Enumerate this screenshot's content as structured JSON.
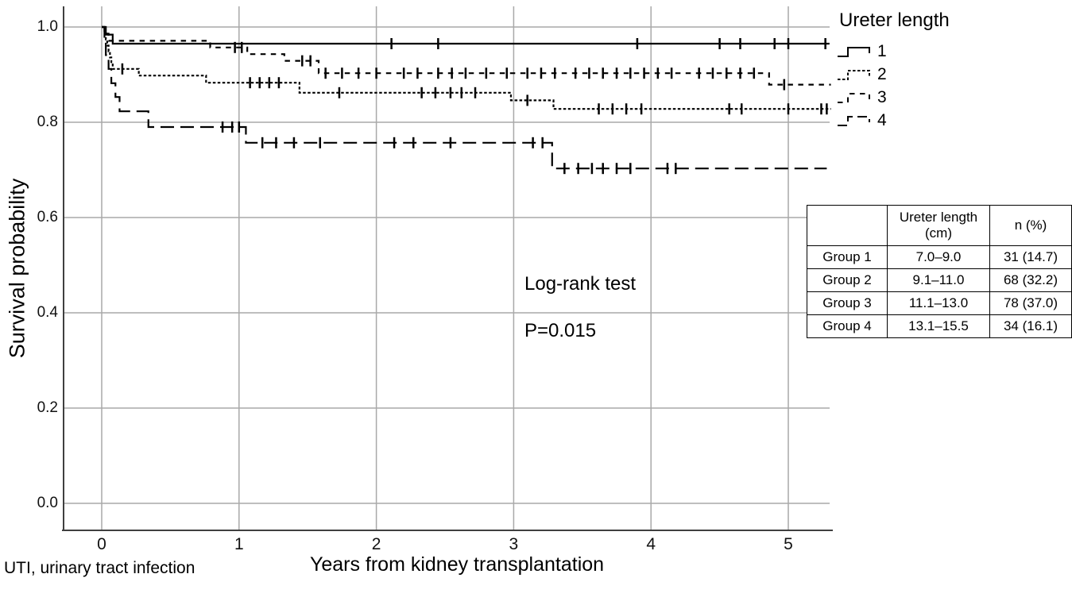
{
  "figure": {
    "footnote": "UTI, urinary tract infection"
  },
  "chart_data": {
    "type": "line",
    "subtype": "kaplan-meier-step",
    "xlabel": "Years from kidney transplantation",
    "ylabel": "Survival probability",
    "x_ticks": [
      0,
      1,
      2,
      3,
      4,
      5
    ],
    "y_ticks": [
      0.0,
      0.2,
      0.4,
      0.6,
      0.8,
      1.0
    ],
    "y_tick_labels": [
      "0.0",
      "0.2",
      "0.4",
      "0.6",
      "0.8",
      "1.0"
    ],
    "xlim": [
      -0.28,
      5.32
    ],
    "ylim": [
      -0.06,
      1.04
    ],
    "grid": true,
    "legend_title": "Ureter length",
    "legend_position": "top-right",
    "annotation": {
      "text": "Log-rank test\nP=0.015",
      "x": 3.08,
      "y": 0.5
    },
    "series": [
      {
        "name": "1",
        "group": "Group 1",
        "line_style": "solid",
        "color": "#000000",
        "steps": [
          [
            0,
            1.0
          ],
          [
            0.03,
            0.984
          ],
          [
            0.08,
            0.965
          ]
        ],
        "end_x": 5.3,
        "censor_times": [
          2.11,
          2.45,
          3.9,
          4.5,
          4.65,
          4.9,
          5.0,
          5.27
        ]
      },
      {
        "name": "2",
        "group": "Group 2",
        "line_style": "fine-dash",
        "color": "#000000",
        "steps": [
          [
            0,
            1.0
          ],
          [
            0.02,
            0.987
          ],
          [
            0.03,
            0.974
          ],
          [
            0.04,
            0.961
          ],
          [
            0.05,
            0.949
          ],
          [
            0.06,
            0.936
          ],
          [
            0.07,
            0.924
          ],
          [
            0.08,
            0.912
          ],
          [
            0.27,
            0.898
          ],
          [
            0.76,
            0.883
          ],
          [
            1.44,
            0.862
          ],
          [
            2.98,
            0.846
          ],
          [
            3.29,
            0.828
          ]
        ],
        "end_x": 5.31,
        "censor_times": [
          0.15,
          1.08,
          1.15,
          1.22,
          1.29,
          1.73,
          2.33,
          2.43,
          2.54,
          2.62,
          2.72,
          3.1,
          3.62,
          3.72,
          3.82,
          3.93,
          4.57,
          4.66,
          5.0,
          5.24,
          5.28
        ]
      },
      {
        "name": "3",
        "group": "Group 3",
        "line_style": "sparse-dash",
        "color": "#000000",
        "steps": [
          [
            0,
            1.0
          ],
          [
            0.02,
            0.986
          ],
          [
            0.05,
            0.971
          ],
          [
            0.79,
            0.957
          ],
          [
            1.06,
            0.943
          ],
          [
            1.33,
            0.929
          ],
          [
            1.58,
            0.903
          ],
          [
            4.86,
            0.879
          ]
        ],
        "end_x": 5.31,
        "censor_times": [
          0.97,
          1.02,
          1.46,
          1.52,
          1.63,
          1.75,
          1.87,
          2.0,
          2.2,
          2.3,
          2.45,
          2.55,
          2.65,
          2.8,
          2.95,
          3.1,
          3.2,
          3.3,
          3.45,
          3.55,
          3.65,
          3.75,
          3.85,
          3.95,
          4.05,
          4.15,
          4.35,
          4.45,
          4.55,
          4.65,
          4.75,
          4.97
        ]
      },
      {
        "name": "4",
        "group": "Group 4",
        "line_style": "long-dash",
        "color": "#000000",
        "steps": [
          [
            0,
            1.0
          ],
          [
            0.02,
            0.97
          ],
          [
            0.03,
            0.941
          ],
          [
            0.05,
            0.912
          ],
          [
            0.07,
            0.882
          ],
          [
            0.1,
            0.853
          ],
          [
            0.13,
            0.823
          ],
          [
            0.34,
            0.79
          ],
          [
            1.05,
            0.757
          ],
          [
            3.28,
            0.703
          ]
        ],
        "end_x": 5.28,
        "censor_times": [
          0.88,
          0.95,
          1.0,
          1.17,
          1.27,
          1.4,
          1.59,
          2.13,
          2.27,
          2.54,
          3.14,
          3.21,
          3.37,
          3.47,
          3.57,
          3.65,
          3.75,
          3.85,
          4.12,
          4.18
        ]
      }
    ]
  },
  "annotation": {
    "line1": "Log-rank test",
    "line2": "P=0.015"
  },
  "legend": {
    "title": "Ureter length",
    "items": [
      "1",
      "2",
      "3",
      "4"
    ]
  },
  "table": {
    "headers": [
      "",
      "Ureter length\n(cm)",
      "n (%)"
    ],
    "rows": [
      [
        "Group 1",
        "7.0–9.0",
        "31 (14.7)"
      ],
      [
        "Group 2",
        "9.1–11.0",
        "68 (32.2)"
      ],
      [
        "Group 3",
        "11.1–13.0",
        "78 (37.0)"
      ],
      [
        "Group 4",
        "13.1–15.5",
        "34 (16.1)"
      ]
    ]
  },
  "colors": {
    "grid": "#a9a9a9",
    "axis": "#3f3f3f",
    "curves": "#000000",
    "background": "#ffffff"
  }
}
